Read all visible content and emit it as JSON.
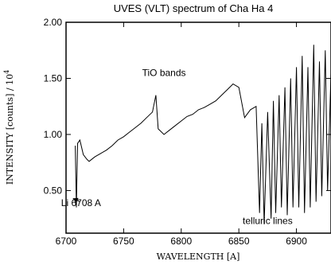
{
  "chart_data": {
    "type": "line",
    "title": "UVES (VLT) spectrum of Cha Ha 4",
    "xlabel": "WAVELENGTH [A]",
    "ylabel_main": "INTENSITY [counts] / 10",
    "ylabel_exp": "4",
    "xlim": [
      6700,
      6930
    ],
    "ylim": [
      0.12,
      2.0
    ],
    "xticks": [
      {
        "value": 6700,
        "label": "6700"
      },
      {
        "value": 6750,
        "label": "6750"
      },
      {
        "value": 6800,
        "label": "6800"
      },
      {
        "value": 6850,
        "label": "6850"
      },
      {
        "value": 6900,
        "label": "6900"
      }
    ],
    "yticks": [
      {
        "value": 0.5,
        "label": "0.50"
      },
      {
        "value": 1.0,
        "label": "1.00"
      },
      {
        "value": 1.5,
        "label": "1.50"
      },
      {
        "value": 2.0,
        "label": "2.00"
      }
    ],
    "grid": false,
    "annotations": [
      {
        "text": "TiO bands",
        "x": 6785,
        "y": 1.52
      },
      {
        "text": "Li 6708 A",
        "x": 6713,
        "y": 0.36
      },
      {
        "text": "telluric lines",
        "x": 6875,
        "y": 0.2
      }
    ],
    "arrow": {
      "from": [
        6712,
        0.4
      ],
      "to": [
        6706,
        0.43
      ]
    },
    "series": [
      {
        "x": [
          6708,
          6709,
          6710,
          6712,
          6715,
          6718,
          6720,
          6725,
          6730,
          6735,
          6740,
          6745,
          6750,
          6755,
          6760,
          6765,
          6770,
          6775,
          6778,
          6780,
          6785,
          6790,
          6795,
          6800,
          6805,
          6810,
          6815,
          6820,
          6825,
          6830,
          6835,
          6840,
          6845,
          6850,
          6855,
          6860,
          6865,
          6868,
          6870,
          6872,
          6875,
          6878,
          6880,
          6882,
          6885,
          6887,
          6890,
          6892,
          6895,
          6897,
          6900,
          6902,
          6905,
          6907,
          6910,
          6912,
          6915,
          6917,
          6920,
          6922,
          6925,
          6927,
          6930
        ],
        "y": [
          0.9,
          0.35,
          0.92,
          0.95,
          0.82,
          0.78,
          0.76,
          0.8,
          0.83,
          0.86,
          0.9,
          0.95,
          0.98,
          1.02,
          1.06,
          1.1,
          1.15,
          1.2,
          1.35,
          1.05,
          1.0,
          1.04,
          1.08,
          1.12,
          1.16,
          1.18,
          1.22,
          1.24,
          1.27,
          1.3,
          1.35,
          1.4,
          1.45,
          1.42,
          1.15,
          1.22,
          1.25,
          0.3,
          1.1,
          0.2,
          1.2,
          0.25,
          1.3,
          0.3,
          1.35,
          0.35,
          1.42,
          0.28,
          1.5,
          0.35,
          1.6,
          0.35,
          1.7,
          0.3,
          1.6,
          0.35,
          1.8,
          0.4,
          1.65,
          0.45,
          1.75,
          0.5,
          1.55
        ]
      }
    ]
  }
}
